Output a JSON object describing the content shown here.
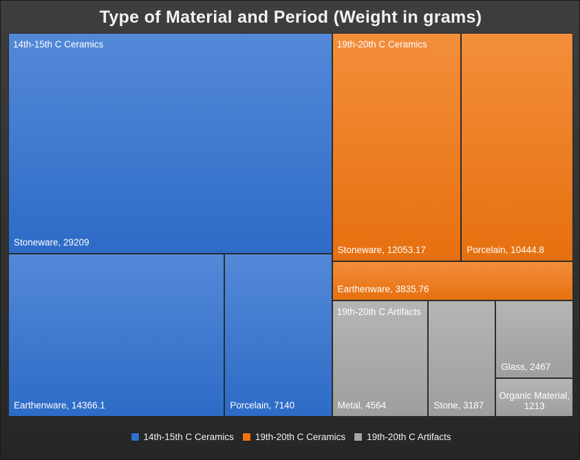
{
  "chart_data": {
    "type": "treemap",
    "title": "Type of Material and Period (Weight in grams)",
    "groups": [
      {
        "name": "14th-15th C Ceramics",
        "color": "#2f6fcf",
        "items": [
          {
            "name": "Stoneware",
            "value": 29209,
            "label": "Stoneware, 29209"
          },
          {
            "name": "Earthenware",
            "value": 14366.1,
            "label": "Earthenware, 14366.1"
          },
          {
            "name": "Porcelain",
            "value": 7140,
            "label": "Porcelain, 7140"
          }
        ]
      },
      {
        "name": "19th-20th C Ceramics",
        "color": "#f07510",
        "items": [
          {
            "name": "Stoneware",
            "value": 12053.17,
            "label": "Stoneware, 12053.17"
          },
          {
            "name": "Porcelain",
            "value": 10444.8,
            "label": "Porcelain, 10444.8"
          },
          {
            "name": "Earthenware",
            "value": 3835.76,
            "label": "Earthenware, 3835.76"
          }
        ]
      },
      {
        "name": "19th-20th C Artifacts",
        "color": "#a5a5a5",
        "items": [
          {
            "name": "Metal",
            "value": 4564,
            "label": "Metal, 4564"
          },
          {
            "name": "Stone",
            "value": 3187,
            "label": "Stone, 3187"
          },
          {
            "name": "Glass",
            "value": 2467,
            "label": "Glass, 2467"
          },
          {
            "name": "Organic Material",
            "value": 1213,
            "label": "Organic Material, 1213"
          }
        ]
      }
    ],
    "legend": {
      "position": "bottom",
      "entries": [
        "14th-15th C Ceramics",
        "19th-20th C Ceramics",
        "19th-20th C Artifacts"
      ]
    }
  }
}
